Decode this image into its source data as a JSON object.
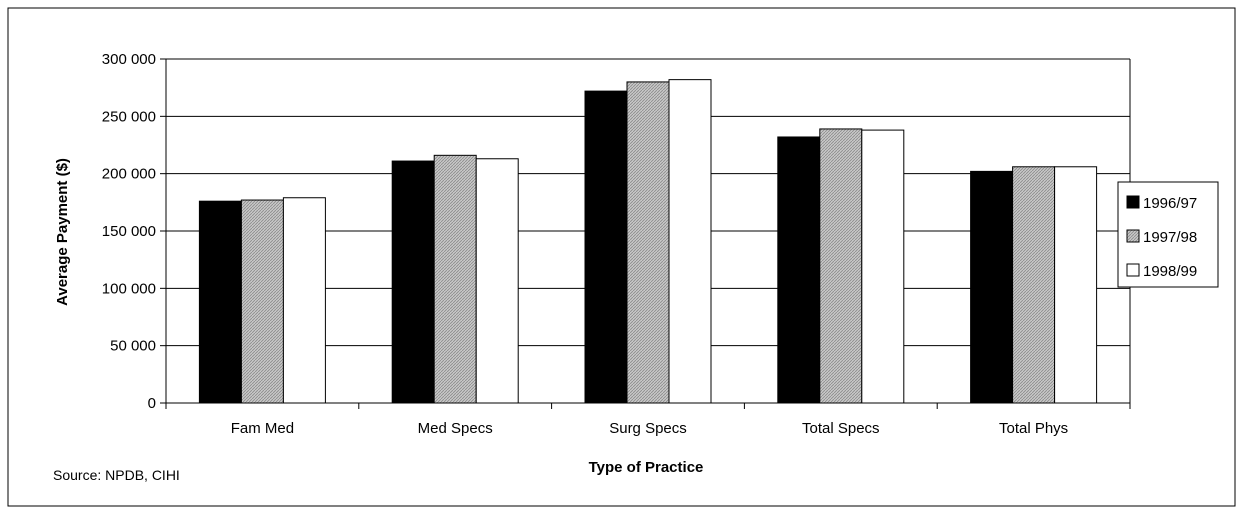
{
  "chart_data": {
    "type": "bar",
    "title": "",
    "xlabel": "Type of Practice",
    "ylabel": "Average Payment ($)",
    "categories": [
      "Fam Med",
      "Med Specs",
      "Surg Specs",
      "Total Specs",
      "Total Phys"
    ],
    "series": [
      {
        "name": "1996/97",
        "values": [
          176000,
          211000,
          272000,
          232000,
          202000
        ],
        "color": "#000000",
        "pattern": "solid"
      },
      {
        "name": "1997/98",
        "values": [
          177000,
          216000,
          280000,
          239000,
          206000
        ],
        "color": "#bdbdbd",
        "pattern": "hatched"
      },
      {
        "name": "1998/99",
        "values": [
          179000,
          213000,
          282000,
          238000,
          206000
        ],
        "color": "#ffffff",
        "pattern": "solid"
      }
    ],
    "ylim": [
      0,
      300000
    ],
    "yticks": [
      0,
      50000,
      100000,
      150000,
      200000,
      250000,
      300000
    ],
    "ytick_labels": [
      "0",
      "50 000",
      "100 000",
      "150 000",
      "200 000",
      "250 000",
      "300 000"
    ],
    "grid": true,
    "legend_position": "right"
  },
  "source_note": "Source: NPDB, CIHI"
}
